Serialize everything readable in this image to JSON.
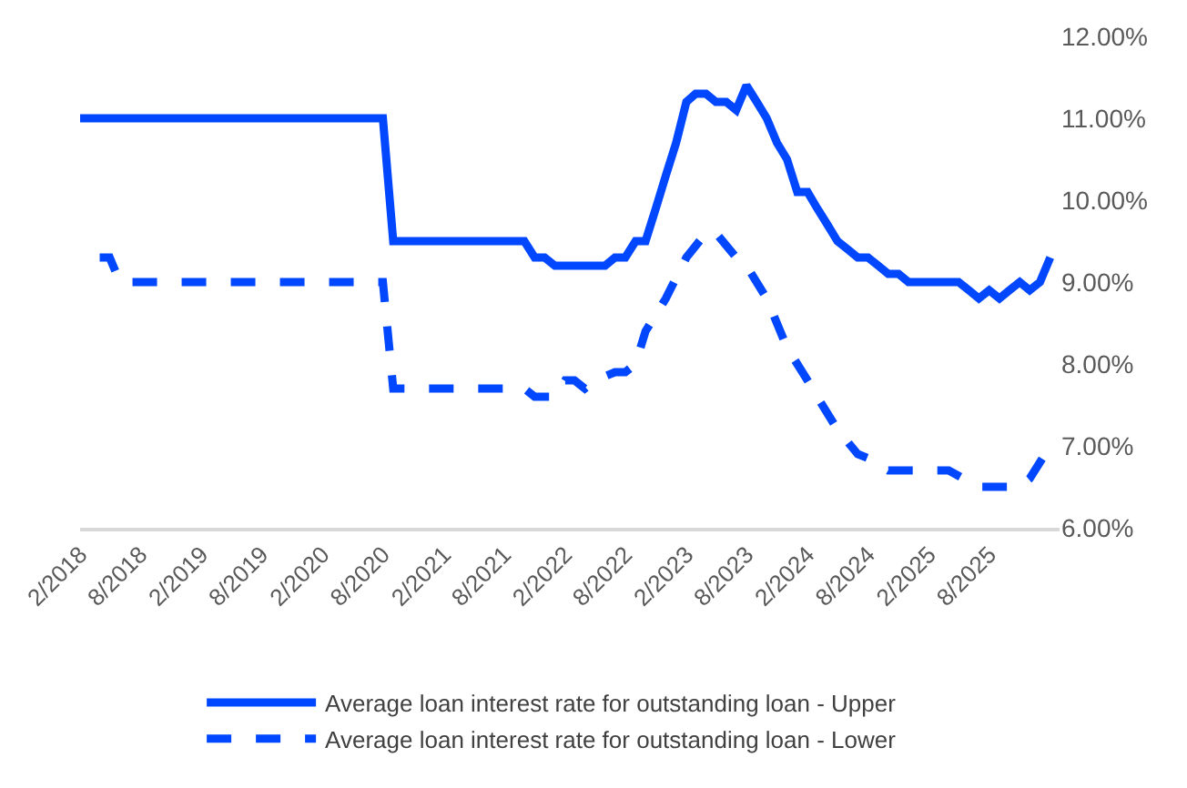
{
  "chart_data": {
    "type": "line",
    "marker": "none",
    "grid": false,
    "legend": "bottom",
    "xlim": [
      "2018-02",
      "2026-03"
    ],
    "xticks": [
      {
        "value": "2018-02",
        "label": "2/2018"
      },
      {
        "value": "2018-08",
        "label": "8/2018"
      },
      {
        "value": "2019-02",
        "label": "2/2019"
      },
      {
        "value": "2019-08",
        "label": "8/2019"
      },
      {
        "value": "2020-02",
        "label": "2/2020"
      },
      {
        "value": "2020-08",
        "label": "8/2020"
      },
      {
        "value": "2021-02",
        "label": "2/2021"
      },
      {
        "value": "2021-08",
        "label": "8/2021"
      },
      {
        "value": "2022-02",
        "label": "2/2022"
      },
      {
        "value": "2022-08",
        "label": "8/2022"
      },
      {
        "value": "2023-02",
        "label": "2/2023"
      },
      {
        "value": "2023-08",
        "label": "8/2023"
      },
      {
        "value": "2024-02",
        "label": "2/2024"
      },
      {
        "value": "2024-08",
        "label": "8/2024"
      },
      {
        "value": "2025-02",
        "label": "2/2025"
      },
      {
        "value": "2025-08",
        "label": "8/2025"
      }
    ],
    "ylim": [
      6,
      12
    ],
    "yticks": [
      {
        "value": 6,
        "label": "6.00%"
      },
      {
        "value": 7,
        "label": "7.00%"
      },
      {
        "value": 8,
        "label": "8.00%"
      },
      {
        "value": 9,
        "label": "9.00%"
      },
      {
        "value": 10,
        "label": "10.00%"
      },
      {
        "value": 11,
        "label": "11.00%"
      },
      {
        "value": 12,
        "label": "12.00%"
      }
    ],
    "series": [
      {
        "name": "Average loan interest rate for outstanding loan - Upper",
        "color": "#0047ff",
        "line_style": "solid",
        "x": [
          "2018-02",
          "2020-08",
          "2020-09",
          "2021-10",
          "2021-11",
          "2021-12",
          "2022-01",
          "2022-06",
          "2022-07",
          "2022-08",
          "2022-09",
          "2022-10",
          "2022-11",
          "2022-12",
          "2023-01",
          "2023-02",
          "2023-03",
          "2023-04",
          "2023-05",
          "2023-06",
          "2023-07",
          "2023-08",
          "2023-09",
          "2023-10",
          "2023-11",
          "2023-12",
          "2024-01",
          "2024-02",
          "2024-03",
          "2024-04",
          "2024-05",
          "2024-06",
          "2024-07",
          "2024-08",
          "2024-09",
          "2024-10",
          "2024-11",
          "2024-12",
          "2025-05",
          "2025-06",
          "2025-07",
          "2025-08",
          "2025-09",
          "2025-10",
          "2025-11",
          "2025-12",
          "2026-01",
          "2026-02"
        ],
        "values": [
          11.0,
          11.0,
          9.5,
          9.5,
          9.3,
          9.3,
          9.2,
          9.2,
          9.3,
          9.3,
          9.5,
          9.5,
          9.9,
          10.3,
          10.7,
          11.2,
          11.3,
          11.3,
          11.2,
          11.2,
          11.1,
          11.4,
          11.2,
          11.0,
          10.7,
          10.5,
          10.1,
          10.1,
          9.9,
          9.7,
          9.5,
          9.4,
          9.3,
          9.3,
          9.2,
          9.1,
          9.1,
          9.0,
          9.0,
          8.9,
          8.8,
          8.9,
          8.8,
          8.9,
          9.0,
          8.9,
          9.0,
          9.3
        ]
      },
      {
        "name": "Average loan interest rate for outstanding loan - Lower",
        "color": "#0047ff",
        "line_style": "dashed",
        "x": [
          "2018-04",
          "2018-05",
          "2018-06",
          "2020-08",
          "2020-09",
          "2021-10",
          "2021-11",
          "2022-01",
          "2022-02",
          "2022-03",
          "2022-04",
          "2022-05",
          "2022-07",
          "2022-08",
          "2022-09",
          "2022-10",
          "2022-12",
          "2023-02",
          "2023-04",
          "2023-05",
          "2023-07",
          "2023-08",
          "2023-10",
          "2023-12",
          "2024-02",
          "2024-03",
          "2024-05",
          "2024-07",
          "2024-08",
          "2024-10",
          "2025-04",
          "2025-07",
          "2025-11",
          "2025-12",
          "2026-02"
        ],
        "values": [
          9.3,
          9.3,
          9.0,
          9.0,
          7.7,
          7.7,
          7.6,
          7.6,
          7.8,
          7.8,
          7.7,
          7.8,
          7.9,
          7.9,
          8.0,
          8.4,
          8.8,
          9.3,
          9.6,
          9.6,
          9.3,
          9.2,
          8.8,
          8.2,
          7.8,
          7.6,
          7.2,
          6.9,
          6.85,
          6.7,
          6.7,
          6.5,
          6.5,
          6.6,
          7.0
        ]
      }
    ]
  }
}
